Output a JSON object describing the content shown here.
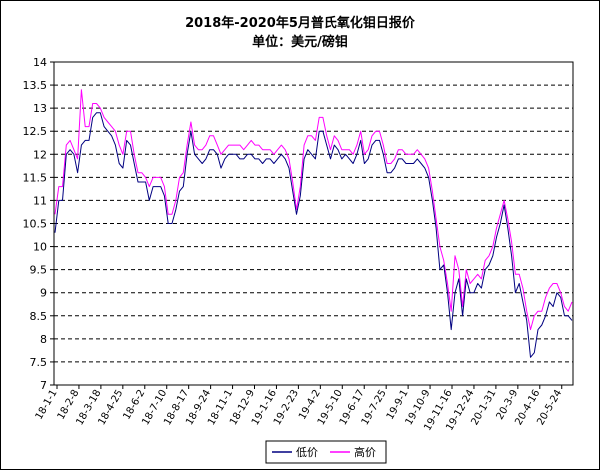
{
  "chart_data": {
    "type": "line",
    "title": "2018年-2020年5月普氏氧化钼日报价",
    "subtitle": "单位：美元/磅钼",
    "xlabel": "",
    "ylabel": "",
    "ylim": [
      7,
      14
    ],
    "y_ticks": [
      "14",
      "13.5",
      "13",
      "12.5",
      "12",
      "11.5",
      "11",
      "10.5",
      "10",
      "9.5",
      "9",
      "8.5",
      "8",
      "7.5",
      "7"
    ],
    "x_ticks": [
      "18-1-1",
      "18-2-8",
      "18-3-18",
      "18-4-25",
      "18-6-2",
      "18-7-10",
      "18-8-17",
      "18-9-24",
      "18-11-1",
      "18-12-9",
      "19-1-16",
      "19-2-23",
      "19-4-2",
      "19-5-10",
      "19-6-17",
      "19-7-25",
      "19-9-1",
      "19-10-9",
      "19-11-16",
      "19-12-24",
      "20-1-31",
      "20-3-9",
      "20-4-16",
      "20-5-24"
    ],
    "grid": "horizontal dashed",
    "legend_position": "bottom-center",
    "colors": {
      "low": "#000080",
      "high": "#ff00ff"
    },
    "series": [
      {
        "name": "低价",
        "key": "low",
        "values": [
          10.3,
          11,
          11,
          12,
          12.1,
          12,
          11.6,
          12.2,
          12.3,
          12.3,
          12.8,
          12.9,
          12.9,
          12.6,
          12.5,
          12.4,
          12.2,
          11.8,
          11.7,
          12.3,
          12.2,
          11.8,
          11.4,
          11.4,
          11.4,
          11,
          11.3,
          11.3,
          11.3,
          11.1,
          10.5,
          10.5,
          10.8,
          11.2,
          11.3,
          12,
          12.5,
          12,
          11.9,
          11.8,
          11.9,
          12.1,
          12.1,
          12,
          11.7,
          11.9,
          12,
          12,
          12,
          11.9,
          11.9,
          12,
          12,
          11.9,
          11.9,
          11.8,
          11.9,
          11.9,
          11.8,
          11.9,
          12,
          11.9,
          11.7,
          11.2,
          10.7,
          11.1,
          11.9,
          12.1,
          12,
          11.9,
          12.5,
          12.5,
          12.2,
          11.9,
          12.2,
          12.1,
          11.9,
          12,
          11.9,
          11.8,
          12,
          12.3,
          11.8,
          11.9,
          12.2,
          12.3,
          12.3,
          12,
          11.6,
          11.6,
          11.7,
          11.9,
          11.9,
          11.8,
          11.8,
          11.8,
          11.9,
          11.8,
          11.7,
          11.5,
          11,
          10.4,
          9.5,
          9.6,
          9,
          8.2,
          9,
          9.3,
          8.5,
          9.3,
          9,
          9,
          9.2,
          9.1,
          9.5,
          9.6,
          9.8,
          10.2,
          10.5,
          10.9,
          10.4,
          9.8,
          9,
          9.2,
          8.8,
          8.4,
          7.6,
          7.7,
          8.2,
          8.3,
          8.5,
          8.8,
          8.7,
          9,
          8.9,
          8.5,
          8.5,
          8.4
        ]
      },
      {
        "name": "高价",
        "key": "high",
        "values": [
          10.7,
          11.3,
          11.3,
          12.2,
          12.3,
          12.1,
          11.9,
          13.4,
          12.6,
          12.6,
          13.1,
          13.1,
          13,
          12.8,
          12.7,
          12.6,
          12.5,
          12.2,
          12,
          12.5,
          12.5,
          12,
          11.6,
          11.6,
          11.5,
          11.3,
          11.5,
          11.5,
          11.5,
          11.3,
          10.7,
          10.7,
          11,
          11.5,
          11.6,
          12.2,
          12.7,
          12.2,
          12.1,
          12.1,
          12.2,
          12.4,
          12.4,
          12.2,
          12,
          12.1,
          12.2,
          12.2,
          12.2,
          12.2,
          12.1,
          12.2,
          12.3,
          12.2,
          12.2,
          12.1,
          12.1,
          12.1,
          12,
          12.1,
          12.2,
          12.1,
          11.9,
          11.4,
          10.8,
          11.3,
          12.2,
          12.4,
          12.4,
          12.3,
          12.8,
          12.8,
          12.4,
          12.1,
          12.4,
          12.3,
          12.1,
          12.1,
          12.1,
          12,
          12.2,
          12.5,
          12,
          12.1,
          12.4,
          12.5,
          12.5,
          12.2,
          11.8,
          11.8,
          11.9,
          12.1,
          12.1,
          12,
          12,
          12,
          12.1,
          12,
          11.9,
          11.7,
          11.2,
          10.6,
          10,
          9.7,
          9.2,
          8.6,
          9.8,
          9.5,
          8.7,
          9.5,
          9.2,
          9.3,
          9.4,
          9.3,
          9.7,
          9.8,
          10,
          10.4,
          10.7,
          11,
          10.6,
          10.1,
          9.4,
          9.4,
          9.1,
          8.6,
          8.2,
          8.5,
          8.6,
          8.6,
          8.9,
          9.1,
          9.2,
          9.2,
          9,
          8.7,
          8.6,
          8.8
        ]
      }
    ]
  }
}
